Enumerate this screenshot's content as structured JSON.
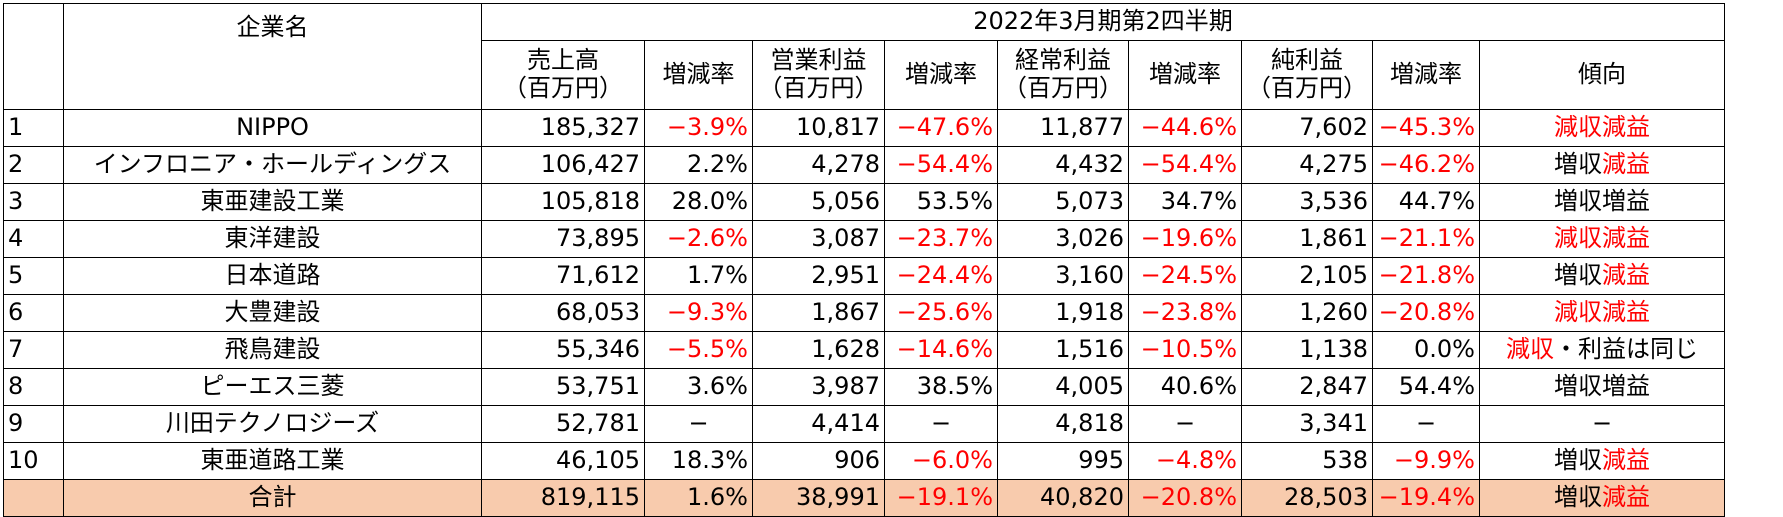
{
  "header": {
    "company_col": "企業名",
    "period": "2022年3月期第2四半期",
    "columns": [
      {
        "line1": "売上高",
        "line2": "（百万円）"
      },
      {
        "line1": "増減率",
        "line2": ""
      },
      {
        "line1": "営業利益",
        "line2": "（百万円）"
      },
      {
        "line1": "増減率",
        "line2": ""
      },
      {
        "line1": "経常利益",
        "line2": "（百万円）"
      },
      {
        "line1": "増減率",
        "line2": ""
      },
      {
        "line1": "純利益",
        "line2": "（百万円）"
      },
      {
        "line1": "増減率",
        "line2": ""
      },
      {
        "line1": "傾向",
        "line2": ""
      }
    ]
  },
  "rows": [
    {
      "no": "1",
      "company": "NIPPO",
      "sales": "185,327",
      "sales_rate": "−3.9%",
      "op": "10,817",
      "op_rate": "−47.6%",
      "ord": "11,877",
      "ord_rate": "−44.6%",
      "net": "7,602",
      "net_rate": "−45.3%",
      "trend_a": "減収",
      "trend_b": "減益"
    },
    {
      "no": "2",
      "company": "インフロニア・ホールディングス",
      "sales": "106,427",
      "sales_rate": "2.2%",
      "op": "4,278",
      "op_rate": "−54.4%",
      "ord": "4,432",
      "ord_rate": "−54.4%",
      "net": "4,275",
      "net_rate": "−46.2%",
      "trend_a": "増収",
      "trend_b": "減益"
    },
    {
      "no": "3",
      "company": "東亜建設工業",
      "sales": "105,818",
      "sales_rate": "28.0%",
      "op": "5,056",
      "op_rate": "53.5%",
      "ord": "5,073",
      "ord_rate": "34.7%",
      "net": "3,536",
      "net_rate": "44.7%",
      "trend_a": "増収",
      "trend_b": "増益"
    },
    {
      "no": "4",
      "company": "東洋建設",
      "sales": "73,895",
      "sales_rate": "−2.6%",
      "op": "3,087",
      "op_rate": "−23.7%",
      "ord": "3,026",
      "ord_rate": "−19.6%",
      "net": "1,861",
      "net_rate": "−21.1%",
      "trend_a": "減収",
      "trend_b": "減益"
    },
    {
      "no": "5",
      "company": "日本道路",
      "sales": "71,612",
      "sales_rate": "1.7%",
      "op": "2,951",
      "op_rate": "−24.4%",
      "ord": "3,160",
      "ord_rate": "−24.5%",
      "net": "2,105",
      "net_rate": "−21.8%",
      "trend_a": "増収",
      "trend_b": "減益"
    },
    {
      "no": "6",
      "company": "大豊建設",
      "sales": "68,053",
      "sales_rate": "−9.3%",
      "op": "1,867",
      "op_rate": "−25.6%",
      "ord": "1,918",
      "ord_rate": "−23.8%",
      "net": "1,260",
      "net_rate": "−20.8%",
      "trend_a": "減収",
      "trend_b": "減益"
    },
    {
      "no": "7",
      "company": "飛鳥建設",
      "sales": "55,346",
      "sales_rate": "−5.5%",
      "op": "1,628",
      "op_rate": "−14.6%",
      "ord": "1,516",
      "ord_rate": "−10.5%",
      "net": "1,138",
      "net_rate": "0.0%",
      "trend_a": "減収",
      "trend_b": "・利益は同じ"
    },
    {
      "no": "8",
      "company": "ピーエス三菱",
      "sales": "53,751",
      "sales_rate": "3.6%",
      "op": "3,987",
      "op_rate": "38.5%",
      "ord": "4,005",
      "ord_rate": "40.6%",
      "net": "2,847",
      "net_rate": "54.4%",
      "trend_a": "増収",
      "trend_b": "増益"
    },
    {
      "no": "9",
      "company": "川田テクノロジーズ",
      "sales": "52,781",
      "sales_rate": "−",
      "op": "4,414",
      "op_rate": "−",
      "ord": "4,818",
      "ord_rate": "−",
      "net": "3,341",
      "net_rate": "−",
      "trend_a": "−",
      "trend_b": ""
    },
    {
      "no": "10",
      "company": "東亜道路工業",
      "sales": "46,105",
      "sales_rate": "18.3%",
      "op": "906",
      "op_rate": "−6.0%",
      "ord": "995",
      "ord_rate": "−4.8%",
      "net": "538",
      "net_rate": "−9.9%",
      "trend_a": "増収",
      "trend_b": "減益"
    }
  ],
  "total": {
    "label": "合計",
    "sales": "819,115",
    "sales_rate": "1.6%",
    "op": "38,991",
    "op_rate": "−19.1%",
    "ord": "40,820",
    "ord_rate": "−20.8%",
    "net": "28,503",
    "net_rate": "−19.4%",
    "trend_a": "増収",
    "trend_b": "減益"
  },
  "colors": {
    "negative": "#ff0000",
    "total_bg": "#f8cbad",
    "border": "#000000"
  }
}
